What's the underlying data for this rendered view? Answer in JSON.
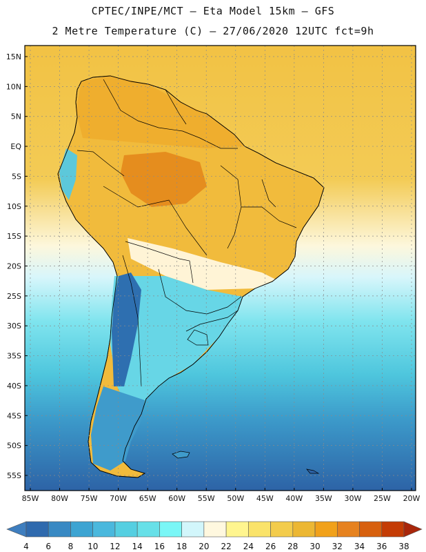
{
  "header": {
    "line1": "CPTEC/INPE/MCT –  Eta Model 15km – GFS",
    "line2": "2 Metre Temperature (C) – 27/06/2020 12UTC fct=9h"
  },
  "map": {
    "lat_labels": [
      "15N",
      "10N",
      "5N",
      "EQ",
      "5S",
      "10S",
      "15S",
      "20S",
      "25S",
      "30S",
      "35S",
      "40S",
      "45S",
      "50S",
      "55S"
    ],
    "lon_labels": [
      "85W",
      "80W",
      "75W",
      "70W",
      "65W",
      "60W",
      "55W",
      "50W",
      "45W",
      "40W",
      "35W",
      "30W",
      "25W",
      "20W"
    ],
    "ocean_gradient": [
      {
        "offset": 0.0,
        "color": "#F2C244"
      },
      {
        "offset": 0.3,
        "color": "#F3CB55"
      },
      {
        "offset": 0.45,
        "color": "#FDF7DC"
      },
      {
        "offset": 0.52,
        "color": "#D8F6FB"
      },
      {
        "offset": 0.62,
        "color": "#7FE4EE"
      },
      {
        "offset": 0.74,
        "color": "#4EC6DD"
      },
      {
        "offset": 0.84,
        "color": "#3C9ACA"
      },
      {
        "offset": 1.0,
        "color": "#2D63A6"
      }
    ],
    "land_colors": {
      "north": "#EFAE2E",
      "amazon_hot": "#E58D1E",
      "central": "#F1BB3C",
      "cool_band": "#FFF4D6",
      "south": "#67D6E6",
      "andes": "#2E6FB0",
      "patagonia": "#3F9BCB"
    },
    "border_color": "#000000"
  },
  "colorbar": {
    "labels": [
      "4",
      "6",
      "8",
      "10",
      "12",
      "14",
      "16",
      "18",
      "20",
      "22",
      "24",
      "26",
      "28",
      "30",
      "32",
      "34",
      "36",
      "38"
    ],
    "colors": [
      "#3E7EBF",
      "#2F6AAE",
      "#3889C3",
      "#3DA4D2",
      "#4AB8DD",
      "#55CFE1",
      "#67E0E8",
      "#7AF6F6",
      "#D2F6FB",
      "#FFF8DF",
      "#FFF58F",
      "#FAE36A",
      "#F3CC4C",
      "#ECB733",
      "#F1A11A",
      "#E6821F",
      "#D7600E",
      "#C43C05",
      "#A9260A"
    ]
  }
}
